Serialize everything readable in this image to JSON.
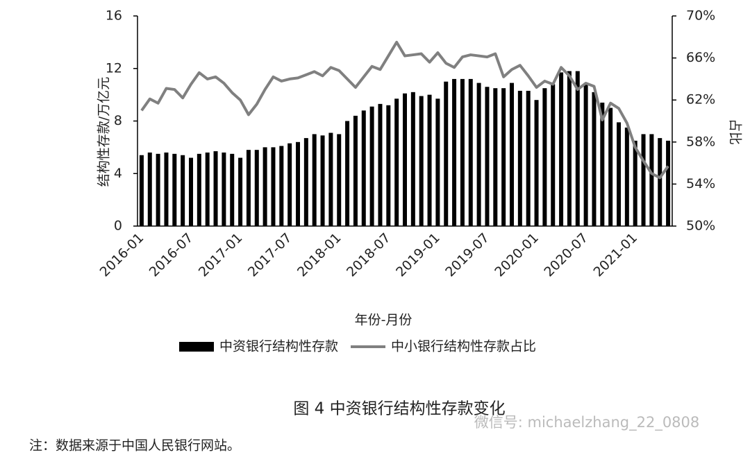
{
  "chart_data": {
    "type": "bar-line",
    "title": "图 4 中资银行结构性存款变化",
    "note": "注：数据来源于中国人民银行网站。",
    "watermark": "微信号: michaelzhang_22_0808",
    "x_label": "年份-月份",
    "y_label": "结构性存款/万亿元",
    "y2_label": "占比",
    "categories": [
      "2016-01",
      null,
      null,
      null,
      null,
      null,
      "2016-07",
      null,
      null,
      null,
      null,
      null,
      "2017-01",
      null,
      null,
      null,
      null,
      null,
      "2017-07",
      null,
      null,
      null,
      null,
      null,
      "2018-01",
      null,
      null,
      null,
      null,
      null,
      "2018-07",
      null,
      null,
      null,
      null,
      null,
      "2019-01",
      null,
      null,
      null,
      null,
      null,
      "2019-07",
      null,
      null,
      null,
      null,
      null,
      "2020-01",
      null,
      null,
      null,
      null,
      null,
      "2020-07",
      null,
      null,
      null,
      null,
      null,
      "2021-01",
      null,
      null,
      null,
      null
    ],
    "ylim": [
      0,
      16
    ],
    "yticks": [
      0,
      4,
      8,
      12,
      16
    ],
    "y2lim": [
      50,
      70
    ],
    "y2ticks": [
      {
        "value": 50,
        "label": "50%"
      },
      {
        "value": 54,
        "label": "54%"
      },
      {
        "value": 58,
        "label": "58%"
      },
      {
        "value": 62,
        "label": "62%"
      },
      {
        "value": 66,
        "label": "66%"
      },
      {
        "value": 70,
        "label": "70%"
      }
    ],
    "legend": "bottom",
    "series": [
      {
        "name": "中资银行结构性存款",
        "type": "bar",
        "color": "#000000",
        "values": [
          5.4,
          5.6,
          5.5,
          5.6,
          5.5,
          5.4,
          5.2,
          5.5,
          5.6,
          5.7,
          5.6,
          5.5,
          5.2,
          5.8,
          5.8,
          6.0,
          6.0,
          6.1,
          6.3,
          6.4,
          6.7,
          7.0,
          6.9,
          7.1,
          7.0,
          8.0,
          8.4,
          8.8,
          9.1,
          9.3,
          9.2,
          9.7,
          10.1,
          10.2,
          9.9,
          10.0,
          9.7,
          11.0,
          11.2,
          11.2,
          11.2,
          10.9,
          10.6,
          10.5,
          10.5,
          10.9,
          10.3,
          10.3,
          9.6,
          10.5,
          10.8,
          11.7,
          11.8,
          11.8,
          10.9,
          10.2,
          9.4,
          9.0,
          7.9,
          7.5,
          6.5,
          7.0,
          7.0,
          6.7,
          6.5
        ]
      },
      {
        "name": "中小银行结构性存款占比",
        "type": "line",
        "axis": "y2",
        "color": "#808080",
        "values": [
          61.0,
          62.1,
          61.7,
          63.1,
          63.0,
          62.2,
          63.5,
          64.6,
          64.0,
          64.2,
          63.6,
          62.7,
          62.0,
          60.6,
          61.6,
          63.0,
          64.2,
          63.8,
          64.0,
          64.1,
          64.4,
          64.7,
          64.3,
          65.1,
          64.8,
          64.0,
          63.2,
          64.2,
          65.2,
          64.9,
          66.2,
          67.5,
          66.2,
          66.3,
          66.4,
          65.6,
          66.5,
          65.5,
          65.1,
          66.1,
          66.3,
          66.2,
          66.1,
          66.4,
          64.2,
          64.9,
          65.3,
          64.3,
          63.2,
          63.8,
          63.5,
          65.1,
          64.3,
          63.0,
          63.6,
          63.3,
          60.1,
          61.7,
          61.2,
          59.8,
          57.5,
          56.2,
          55.0,
          54.6,
          55.7
        ]
      }
    ]
  }
}
